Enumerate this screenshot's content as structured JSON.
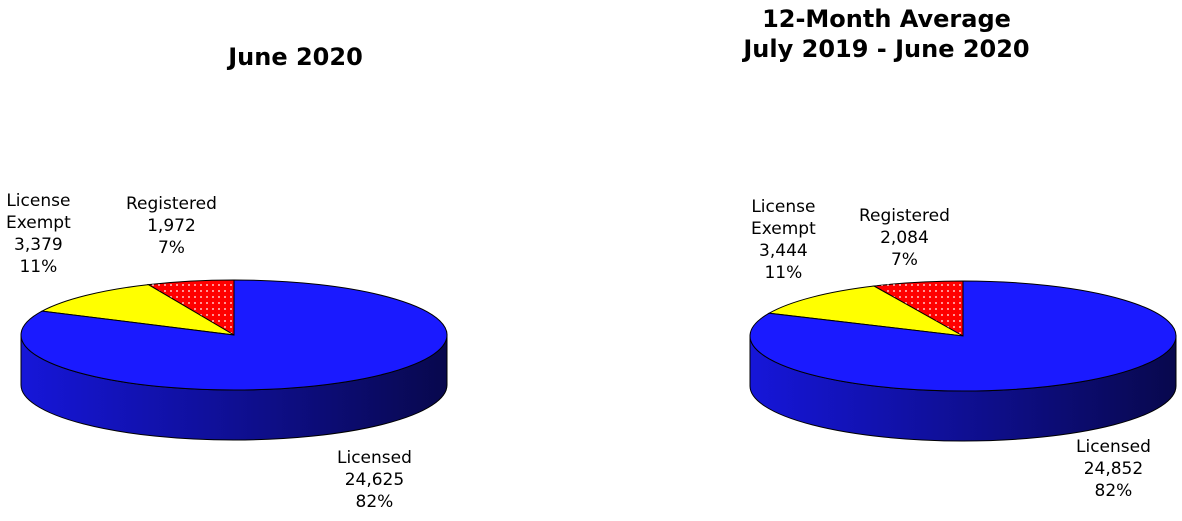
{
  "colors": {
    "licensed": "#1a1aff",
    "license_exempt": "#ffff00",
    "registered": "#ff0000",
    "dots": "#ffffff"
  },
  "chart_data": [
    {
      "type": "pie",
      "title": "June 2020",
      "slices": [
        {
          "label_lines": [
            "Licensed"
          ],
          "value": 24625,
          "value_text": "24,625",
          "percent_text": "82%",
          "color_key": "licensed",
          "pattern": "none"
        },
        {
          "label_lines": [
            "License",
            "Exempt"
          ],
          "value": 3379,
          "value_text": "3,379",
          "percent_text": "11%",
          "color_key": "license_exempt",
          "pattern": "none"
        },
        {
          "label_lines": [
            "Registered"
          ],
          "value": 1972,
          "value_text": "1,972",
          "percent_text": "7%",
          "color_key": "registered",
          "pattern": "dots"
        }
      ]
    },
    {
      "type": "pie",
      "title_lines": [
        "12-Month Average",
        "July 2019 - June 2020"
      ],
      "slices": [
        {
          "label_lines": [
            "Licensed"
          ],
          "value": 24852,
          "value_text": "24,852",
          "percent_text": "82%",
          "color_key": "licensed",
          "pattern": "none"
        },
        {
          "label_lines": [
            "License",
            "Exempt"
          ],
          "value": 3444,
          "value_text": "3,444",
          "percent_text": "11%",
          "color_key": "license_exempt",
          "pattern": "none"
        },
        {
          "label_lines": [
            "Registered"
          ],
          "value": 2084,
          "value_text": "2,084",
          "percent_text": "7%",
          "color_key": "registered",
          "pattern": "dots"
        }
      ]
    }
  ]
}
